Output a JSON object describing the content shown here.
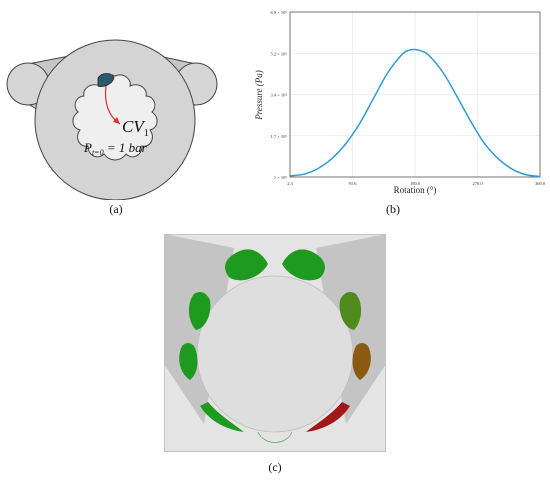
{
  "panels": {
    "a": {
      "label": "(a)",
      "annotation_cv": "CV",
      "annotation_cv_sub": "1",
      "annotation_p": "P",
      "annotation_p_sub": "t=0",
      "annotation_p_rest": " = 1 bar"
    },
    "b": {
      "label": "(b)"
    },
    "c": {
      "label": "(c)"
    }
  },
  "colors": {
    "curve": "#2f9bd6",
    "highlight": "#2b5a6e",
    "arrow": "#e03030",
    "green": "#1e9a1e",
    "olive": "#6a7a1a",
    "brown": "#8a5a10",
    "red": "#a01818"
  },
  "chart_data": {
    "type": "line",
    "title": "",
    "xlabel": "Rotation (°)",
    "ylabel": "Pressure (Pa)",
    "x_ticks": [
      "2.3",
      "91.6",
      "180.0",
      "270.0",
      "360.0"
    ],
    "y_ticks": [
      "1 × 10⁵",
      "1.7 × 10⁵",
      "3.4 × 10⁵",
      "5.2 × 10⁵",
      "6.9 × 10⁵"
    ],
    "xlim": [
      0,
      360
    ],
    "ylim": [
      100000,
      690000
    ],
    "grid": true,
    "series": [
      {
        "name": "",
        "x": [
          0,
          20,
          40,
          60,
          80,
          100,
          120,
          140,
          160,
          170,
          180,
          190,
          200,
          220,
          240,
          260,
          280,
          300,
          320,
          340,
          360
        ],
        "y": [
          104000,
          110000,
          130000,
          165000,
          218000,
          290000,
          380000,
          470000,
          535000,
          552000,
          556000,
          550000,
          535000,
          475000,
          390000,
          300000,
          220000,
          165000,
          128000,
          108000,
          102000
        ]
      }
    ]
  }
}
